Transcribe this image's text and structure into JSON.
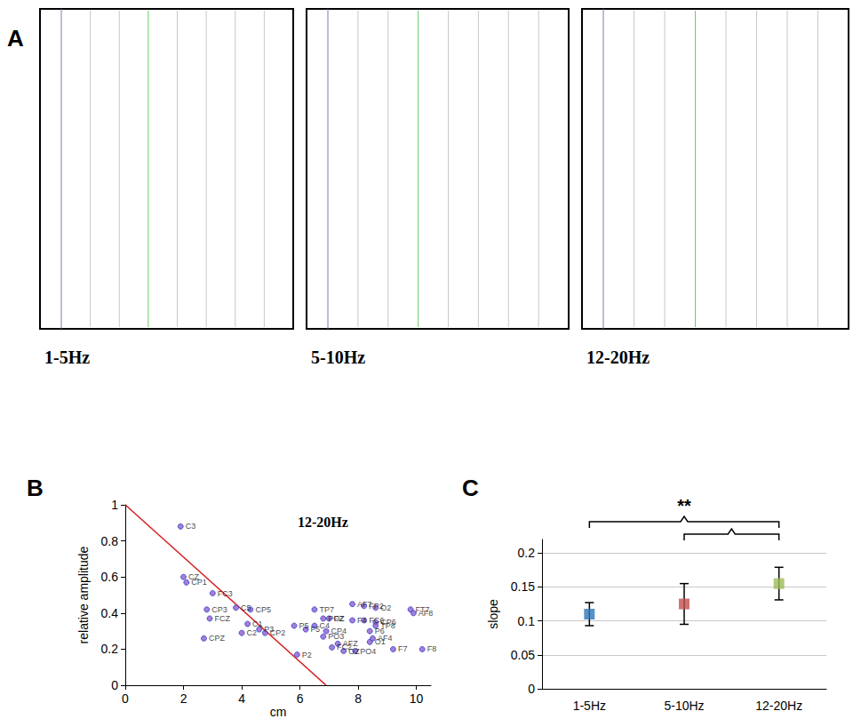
{
  "panel_a": {
    "panel": "A",
    "captions": [
      "1-5Hz",
      "5-10Hz",
      "12-20Hz"
    ]
  },
  "chart_data": [
    {
      "panel": "B",
      "type": "scatter",
      "title": "12-20Hz",
      "x_label": "cm",
      "y_label": "relative amplitude",
      "color": "#8e5ccf",
      "points": [
        {
          "label": "C3",
          "x": 1.9,
          "y": 0.88
        },
        {
          "label": "CZ",
          "x": 2.0,
          "y": 0.6
        },
        {
          "label": "CP1",
          "x": 2.1,
          "y": 0.57
        },
        {
          "label": "FC3",
          "x": 3.0,
          "y": 0.51
        },
        {
          "label": "CP3",
          "x": 2.8,
          "y": 0.42
        },
        {
          "label": "FCZ",
          "x": 2.9,
          "y": 0.37
        },
        {
          "label": "CPZ",
          "x": 2.7,
          "y": 0.26
        },
        {
          "label": "C5",
          "x": 3.8,
          "y": 0.43
        },
        {
          "label": "CP5",
          "x": 4.3,
          "y": 0.42
        },
        {
          "label": "C1",
          "x": 4.2,
          "y": 0.34
        },
        {
          "label": "C2",
          "x": 4.0,
          "y": 0.29
        },
        {
          "label": "P3",
          "x": 4.6,
          "y": 0.31
        },
        {
          "label": "CP2",
          "x": 4.8,
          "y": 0.29
        },
        {
          "label": "P5",
          "x": 5.8,
          "y": 0.33
        },
        {
          "label": "F5",
          "x": 6.2,
          "y": 0.31
        },
        {
          "label": "C4",
          "x": 6.5,
          "y": 0.33
        },
        {
          "label": "TP7",
          "x": 6.5,
          "y": 0.42
        },
        {
          "label": "POZ",
          "x": 6.8,
          "y": 0.37
        },
        {
          "label": "FZ",
          "x": 7.0,
          "y": 0.37
        },
        {
          "label": "CP4",
          "x": 6.9,
          "y": 0.3
        },
        {
          "label": "PO3",
          "x": 6.8,
          "y": 0.27
        },
        {
          "label": "P2",
          "x": 5.9,
          "y": 0.17
        },
        {
          "label": "AFZ",
          "x": 7.3,
          "y": 0.23
        },
        {
          "label": "FC2",
          "x": 7.1,
          "y": 0.21
        },
        {
          "label": "OZ",
          "x": 7.5,
          "y": 0.19
        },
        {
          "label": "PO4",
          "x": 7.9,
          "y": 0.19
        },
        {
          "label": "O1",
          "x": 8.4,
          "y": 0.24
        },
        {
          "label": "F4",
          "x": 7.8,
          "y": 0.36
        },
        {
          "label": "FC6",
          "x": 8.2,
          "y": 0.36
        },
        {
          "label": "CP6",
          "x": 8.6,
          "y": 0.35
        },
        {
          "label": "AF7",
          "x": 7.8,
          "y": 0.45
        },
        {
          "label": "FP2",
          "x": 8.2,
          "y": 0.44
        },
        {
          "label": "O2",
          "x": 8.6,
          "y": 0.43
        },
        {
          "label": "FT7",
          "x": 9.8,
          "y": 0.42
        },
        {
          "label": "AF8",
          "x": 9.9,
          "y": 0.4
        },
        {
          "label": "P6",
          "x": 8.4,
          "y": 0.3
        },
        {
          "label": "TP8",
          "x": 8.6,
          "y": 0.33
        },
        {
          "label": "AF4",
          "x": 8.5,
          "y": 0.26
        },
        {
          "label": "F7",
          "x": 9.2,
          "y": 0.2
        },
        {
          "label": "F8",
          "x": 10.2,
          "y": 0.2
        }
      ],
      "fit_line": {
        "x": [
          0,
          6.9
        ],
        "y": [
          1,
          0
        ],
        "color": "#d62020"
      },
      "xlim": [
        0,
        10.5
      ],
      "xticks": [
        0,
        2,
        4,
        6,
        8,
        10
      ],
      "ylim": [
        0,
        1
      ],
      "yticks": [
        0,
        0.2,
        0.4,
        0.6,
        0.8,
        1
      ],
      "grid": false
    },
    {
      "panel": "C",
      "type": "scatter",
      "marker": "square",
      "y_label": "slope",
      "categories": [
        "1-5Hz",
        "5-10Hz",
        "12-20Hz"
      ],
      "values": [
        0.11,
        0.125,
        0.155
      ],
      "errors": [
        0.017,
        0.03,
        0.024
      ],
      "colors": [
        "#2e75b6",
        "#c0504d",
        "#9bbb59"
      ],
      "ylim": [
        0,
        0.22
      ],
      "yticks": [
        0,
        0.05,
        0.1,
        0.15,
        0.2
      ],
      "grid": true,
      "significance": {
        "label": "**",
        "pairs": [
          [
            "1-5Hz",
            "12-20Hz"
          ],
          [
            "5-10Hz",
            "12-20Hz"
          ]
        ]
      }
    }
  ]
}
